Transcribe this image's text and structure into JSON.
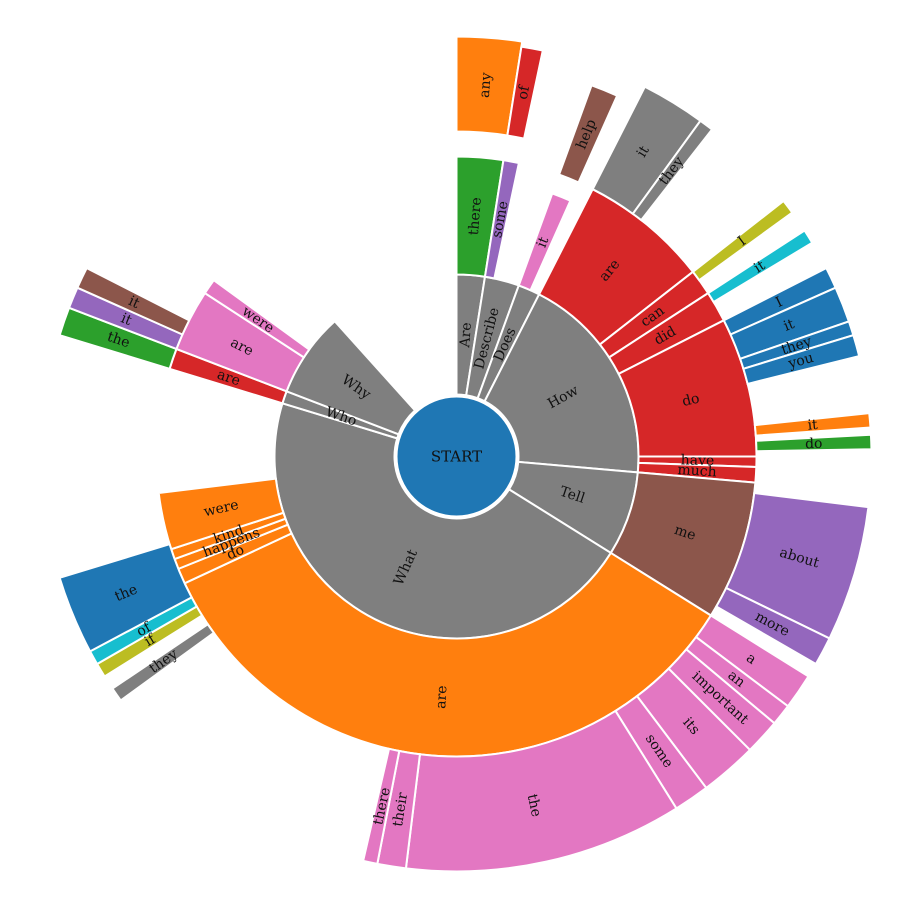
{
  "chart_data": {
    "type": "sunburst",
    "root": "START",
    "colors": {
      "root": "#1f77b4",
      "level1": "#7f7f7f",
      "palette": [
        "#ff7f0e",
        "#e377c2",
        "#8c564b",
        "#d62728",
        "#2ca02c",
        "#9467bd",
        "#1f77b4",
        "#17becf",
        "#bcbd22",
        "#7f7f7f"
      ]
    },
    "children": [
      {
        "label": "Are",
        "color": "#7f7f7f",
        "children": [
          {
            "label": "there",
            "color": "#2ca02c",
            "children": []
          },
          {
            "label": "any",
            "color": "#ff7f0e",
            "children": []
          }
        ]
      },
      {
        "label": "Describe",
        "color": "#7f7f7f",
        "children": [
          {
            "label": "some",
            "color": "#9467bd",
            "children": []
          },
          {
            "label": "of",
            "color": "#d62728",
            "children": []
          }
        ]
      },
      {
        "label": "Does",
        "color": "#7f7f7f",
        "children": [
          {
            "label": "it",
            "color": "#e377c2",
            "children": []
          },
          {
            "label": "help",
            "color": "#8c564b",
            "children": []
          }
        ]
      },
      {
        "label": "How",
        "color": "#7f7f7f",
        "children": [
          {
            "label": "are",
            "color": "#d62728",
            "children": [
              {
                "label": "it",
                "color": "#7f7f7f"
              },
              {
                "label": "they",
                "color": "#7f7f7f"
              }
            ]
          },
          {
            "label": "can",
            "color": "#d62728",
            "children": [
              {
                "label": "I",
                "color": "#bcbd22"
              }
            ]
          },
          {
            "label": "did",
            "color": "#d62728",
            "children": [
              {
                "label": "it",
                "color": "#17becf"
              }
            ]
          },
          {
            "label": "do",
            "color": "#d62728",
            "children": [
              {
                "label": "I",
                "color": "#1f77b4"
              },
              {
                "label": "it",
                "color": "#1f77b4"
              },
              {
                "label": "they",
                "color": "#1f77b4"
              },
              {
                "label": "you",
                "color": "#1f77b4"
              }
            ]
          },
          {
            "label": "have",
            "color": "#d62728",
            "children": [
              {
                "label": "it",
                "color": "#ff7f0e"
              }
            ]
          },
          {
            "label": "much",
            "color": "#d62728",
            "children": [
              {
                "label": "do",
                "color": "#2ca02c"
              }
            ]
          }
        ]
      },
      {
        "label": "Tell",
        "color": "#7f7f7f",
        "children": [
          {
            "label": "me",
            "color": "#8c564b",
            "children": [
              {
                "label": "about",
                "color": "#9467bd"
              },
              {
                "label": "more",
                "color": "#9467bd"
              }
            ]
          }
        ]
      },
      {
        "label": "What",
        "color": "#7f7f7f",
        "children": [
          {
            "label": "are",
            "color": "#ff7f0e",
            "children": [
              {
                "label": "a",
                "color": "#e377c2"
              },
              {
                "label": "an",
                "color": "#e377c2"
              },
              {
                "label": "important",
                "color": "#e377c2"
              },
              {
                "label": "its",
                "color": "#e377c2"
              },
              {
                "label": "some",
                "color": "#e377c2"
              },
              {
                "label": "the",
                "color": "#e377c2"
              },
              {
                "label": "their",
                "color": "#e377c2"
              },
              {
                "label": "there",
                "color": "#e377c2"
              }
            ]
          },
          {
            "label": "do",
            "color": "#ff7f0e",
            "children": [
              {
                "label": "they",
                "color": "#7f7f7f"
              }
            ]
          },
          {
            "label": "happens",
            "color": "#ff7f0e",
            "children": [
              {
                "label": "if",
                "color": "#bcbd22"
              }
            ]
          },
          {
            "label": "kind",
            "color": "#ff7f0e",
            "children": [
              {
                "label": "of",
                "color": "#17becf"
              }
            ]
          },
          {
            "label": "were",
            "color": "#ff7f0e",
            "children": [
              {
                "label": "the",
                "color": "#1f77b4"
              }
            ]
          }
        ]
      },
      {
        "label": "Who",
        "color": "#7f7f7f",
        "children": [
          {
            "label": "are",
            "color": "#d62728",
            "children": [
              {
                "label": "the",
                "color": "#2ca02c"
              }
            ]
          }
        ]
      },
      {
        "label": "Why",
        "color": "#7f7f7f",
        "children": [
          {
            "label": "are",
            "color": "#e377c2",
            "children": [
              {
                "label": "it",
                "color": "#9467bd"
              }
            ]
          },
          {
            "label": "were",
            "color": "#e377c2",
            "children": [
              {
                "label": "it",
                "color": "#8c564b"
              }
            ]
          }
        ]
      }
    ]
  }
}
